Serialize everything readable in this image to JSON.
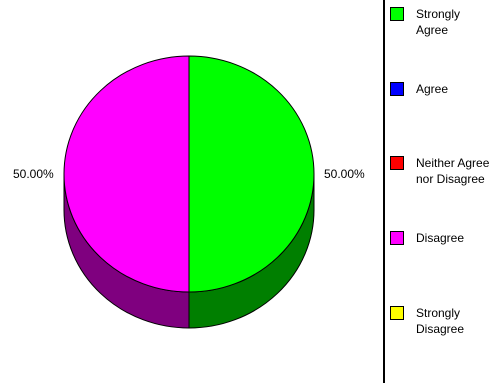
{
  "chart_data": {
    "type": "pie",
    "categories": [
      "Strongly Agree",
      "Agree",
      "Neither Agree nor Disagree",
      "Disagree",
      "Strongly Disagree"
    ],
    "values": [
      50.0,
      0.0,
      0.0,
      50.0,
      0.0
    ],
    "value_labels": [
      "50.00%",
      "",
      "",
      "50.00%",
      ""
    ],
    "colors": [
      "#00ff00",
      "#0000ff",
      "#ff0000",
      "#ff00ff",
      "#ffff00"
    ],
    "side_colors": [
      "#007f00",
      "#00007f",
      "#7f0000",
      "#7f007f",
      "#7f7f00"
    ],
    "style": "3d",
    "legend_position": "right",
    "title": ""
  },
  "legend": {
    "items": [
      {
        "label": "Strongly\nAgree",
        "color": "#00ff00"
      },
      {
        "label": "Agree",
        "color": "#0000ff"
      },
      {
        "label": "Neither Agree\nnor Disagree",
        "color": "#ff0000"
      },
      {
        "label": "Disagree",
        "color": "#ff00ff"
      },
      {
        "label": "Strongly\nDisagree",
        "color": "#ffff00"
      }
    ]
  }
}
